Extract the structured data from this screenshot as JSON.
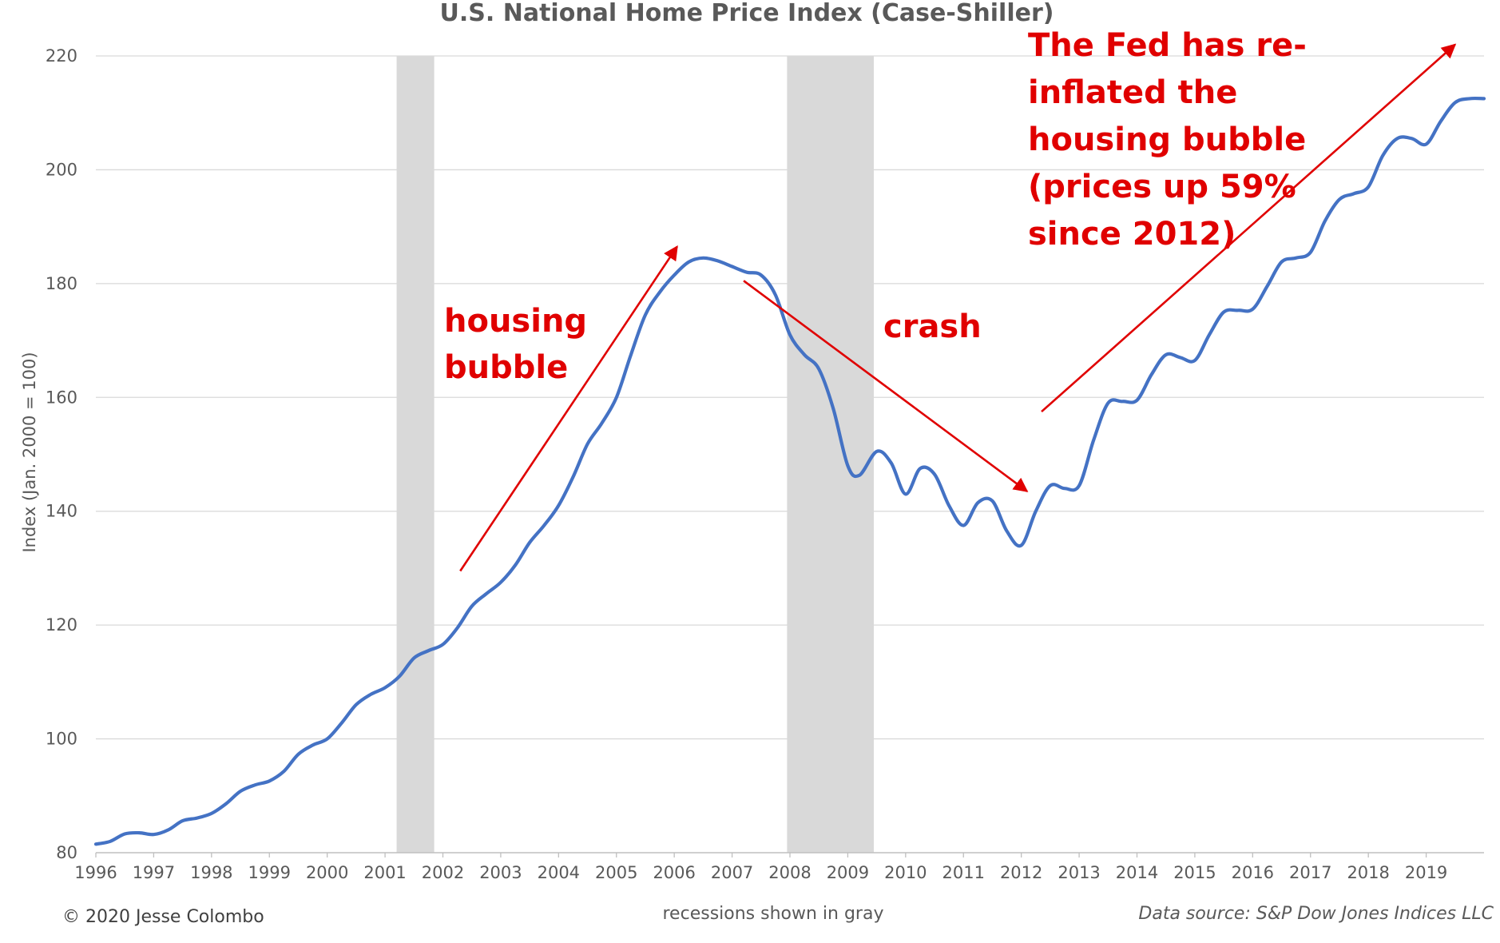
{
  "chart_data": {
    "type": "line",
    "title": "U.S. National Home Price Index (Case-Shiller)",
    "xlabel": "",
    "ylabel": "Index (Jan. 2000 = 100)",
    "xlim": [
      1996,
      2020
    ],
    "ylim": [
      80,
      220
    ],
    "x_ticks": [
      "1996",
      "1997",
      "1998",
      "1999",
      "2000",
      "2001",
      "2002",
      "2003",
      "2004",
      "2005",
      "2006",
      "2007",
      "2008",
      "2009",
      "2010",
      "2011",
      "2012",
      "2013",
      "2014",
      "2015",
      "2016",
      "2017",
      "2018",
      "2019"
    ],
    "y_ticks": [
      80,
      100,
      120,
      140,
      160,
      180,
      200,
      220
    ],
    "grid": "horizontal",
    "legend": "none",
    "line_color": "#4472c4",
    "recession_color": "#d9d9d9",
    "annotation_color": "#e00000",
    "recessions": [
      {
        "start": 2001.2,
        "end": 2001.85
      },
      {
        "start": 2007.95,
        "end": 2009.45
      }
    ],
    "series": [
      {
        "values": [
          [
            1996.0,
            81.5
          ],
          [
            1996.25,
            82.0
          ],
          [
            1996.5,
            83.3
          ],
          [
            1996.75,
            83.5
          ],
          [
            1997.0,
            83.2
          ],
          [
            1997.25,
            84.0
          ],
          [
            1997.5,
            85.6
          ],
          [
            1997.75,
            86.1
          ],
          [
            1998.0,
            86.9
          ],
          [
            1998.25,
            88.6
          ],
          [
            1998.5,
            90.8
          ],
          [
            1998.75,
            91.9
          ],
          [
            1999.0,
            92.6
          ],
          [
            1999.25,
            94.3
          ],
          [
            1999.5,
            97.3
          ],
          [
            1999.75,
            98.9
          ],
          [
            2000.0,
            100.0
          ],
          [
            2000.25,
            102.8
          ],
          [
            2000.5,
            106.0
          ],
          [
            2000.75,
            107.8
          ],
          [
            2001.0,
            109.0
          ],
          [
            2001.25,
            111.0
          ],
          [
            2001.5,
            114.2
          ],
          [
            2001.75,
            115.5
          ],
          [
            2002.0,
            116.6
          ],
          [
            2002.25,
            119.5
          ],
          [
            2002.5,
            123.3
          ],
          [
            2002.75,
            125.5
          ],
          [
            2003.0,
            127.5
          ],
          [
            2003.25,
            130.5
          ],
          [
            2003.5,
            134.5
          ],
          [
            2003.75,
            137.5
          ],
          [
            2004.0,
            141.0
          ],
          [
            2004.25,
            146.0
          ],
          [
            2004.5,
            151.8
          ],
          [
            2004.75,
            155.5
          ],
          [
            2005.0,
            160.0
          ],
          [
            2005.25,
            167.5
          ],
          [
            2005.5,
            174.5
          ],
          [
            2005.75,
            178.5
          ],
          [
            2006.0,
            181.5
          ],
          [
            2006.25,
            183.8
          ],
          [
            2006.5,
            184.5
          ],
          [
            2006.75,
            184.0
          ],
          [
            2007.0,
            183.0
          ],
          [
            2007.25,
            182.0
          ],
          [
            2007.5,
            181.5
          ],
          [
            2007.75,
            178.0
          ],
          [
            2008.0,
            171.0
          ],
          [
            2008.25,
            167.5
          ],
          [
            2008.5,
            165.0
          ],
          [
            2008.75,
            158.0
          ],
          [
            2009.0,
            148.0
          ],
          [
            2009.2,
            146.3
          ],
          [
            2009.5,
            150.5
          ],
          [
            2009.75,
            148.5
          ],
          [
            2010.0,
            143.0
          ],
          [
            2010.25,
            147.5
          ],
          [
            2010.5,
            146.5
          ],
          [
            2010.75,
            141.0
          ],
          [
            2011.0,
            137.5
          ],
          [
            2011.25,
            141.5
          ],
          [
            2011.5,
            141.8
          ],
          [
            2011.75,
            136.5
          ],
          [
            2012.0,
            134.0
          ],
          [
            2012.25,
            140.0
          ],
          [
            2012.5,
            144.5
          ],
          [
            2012.75,
            144.0
          ],
          [
            2013.0,
            144.5
          ],
          [
            2013.25,
            152.5
          ],
          [
            2013.5,
            159.0
          ],
          [
            2013.75,
            159.3
          ],
          [
            2014.0,
            159.5
          ],
          [
            2014.25,
            164.0
          ],
          [
            2014.5,
            167.5
          ],
          [
            2014.75,
            167.0
          ],
          [
            2015.0,
            166.5
          ],
          [
            2015.25,
            171.0
          ],
          [
            2015.5,
            175.0
          ],
          [
            2015.75,
            175.3
          ],
          [
            2016.0,
            175.5
          ],
          [
            2016.25,
            179.5
          ],
          [
            2016.5,
            183.8
          ],
          [
            2016.75,
            184.5
          ],
          [
            2017.0,
            185.5
          ],
          [
            2017.25,
            191.0
          ],
          [
            2017.5,
            194.8
          ],
          [
            2017.75,
            195.8
          ],
          [
            2018.0,
            197.0
          ],
          [
            2018.25,
            202.5
          ],
          [
            2018.5,
            205.5
          ],
          [
            2018.75,
            205.5
          ],
          [
            2019.0,
            204.5
          ],
          [
            2019.25,
            208.5
          ],
          [
            2019.5,
            211.8
          ],
          [
            2019.75,
            212.5
          ],
          [
            2020.0,
            212.5
          ]
        ]
      }
    ],
    "annotations": [
      {
        "lines": [
          "housing",
          "bubble"
        ]
      },
      {
        "lines": [
          "crash"
        ]
      },
      {
        "lines": [
          "The Fed has re-",
          "inflated the",
          "housing bubble",
          "(prices up 59%",
          "since 2012)"
        ]
      }
    ],
    "arrows": [
      {
        "from": [
          2002.3,
          129.5
        ],
        "to": [
          2006.05,
          186.5
        ]
      },
      {
        "from": [
          2007.2,
          180.5
        ],
        "to": [
          2012.1,
          143.5
        ]
      },
      {
        "from": [
          2012.35,
          157.5
        ],
        "to": [
          2019.5,
          222.0
        ]
      }
    ]
  },
  "footer": {
    "copyright": "© 2020 Jesse Colombo",
    "note": "recessions shown in gray",
    "source": "Data source: S&P Dow Jones Indices LLC"
  }
}
